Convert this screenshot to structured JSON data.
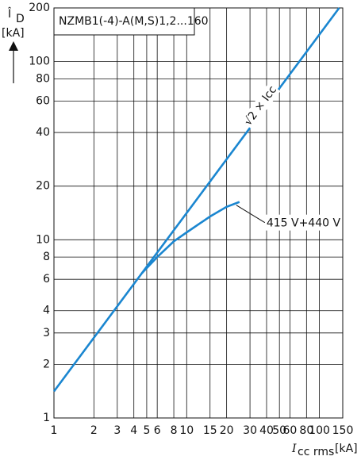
{
  "chart_data": {
    "type": "line",
    "title": "NZMB1(-4)-A(M,S)1,2...160",
    "xlabel": {
      "symbol": "I",
      "subscript": "cc rms",
      "unit": "[kA]"
    },
    "ylabel": {
      "symbol": "Î",
      "subscript": "D",
      "unit": "[kA]"
    },
    "log_x": true,
    "log_y": true,
    "grid": true,
    "xlim": [
      1,
      150
    ],
    "ylim": [
      1,
      200
    ],
    "xticks": [
      1,
      2,
      3,
      4,
      5,
      6,
      8,
      10,
      15,
      20,
      30,
      40,
      50,
      60,
      80,
      100,
      150
    ],
    "yticks": [
      1,
      2,
      3,
      4,
      6,
      8,
      10,
      20,
      40,
      60,
      80,
      100,
      200
    ],
    "series": [
      {
        "name": "√2 × Icc",
        "color": "#1a86d0",
        "x": [
          1,
          141
        ],
        "values": [
          1.41,
          200
        ]
      },
      {
        "name": "415 V+440 V",
        "color": "#1a86d0",
        "x": [
          4.6,
          6,
          8,
          10,
          15,
          20,
          25
        ],
        "values": [
          6.5,
          8,
          9.8,
          11,
          13.5,
          15.3,
          16.3
        ]
      }
    ]
  }
}
